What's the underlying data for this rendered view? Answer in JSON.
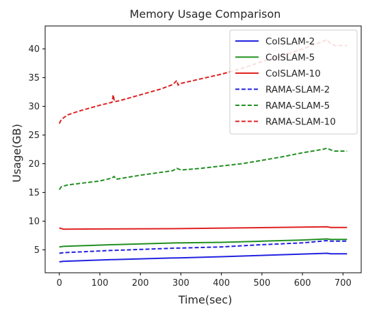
{
  "chart_data": {
    "type": "line",
    "title": "Memory Usage Comparison",
    "xlabel": "Time(sec)",
    "ylabel": "Usage(GB)",
    "xlim": [
      -35,
      745
    ],
    "ylim": [
      1,
      44
    ],
    "xticks": [
      0,
      100,
      200,
      300,
      400,
      500,
      600,
      700
    ],
    "yticks": [
      5,
      10,
      15,
      20,
      25,
      30,
      35,
      40
    ],
    "grid": false,
    "legend_position": "top-right",
    "series": [
      {
        "name": "ColSLAM-2",
        "color": "#1f1fe0",
        "style": "solid",
        "x": [
          0,
          10,
          130,
          135,
          290,
          295,
          400,
          660,
          670,
          710
        ],
        "y": [
          2.9,
          3.0,
          3.3,
          3.3,
          3.6,
          3.6,
          3.8,
          4.4,
          4.3,
          4.3
        ]
      },
      {
        "name": "ColSLAM-5",
        "color": "#1f8f1f",
        "style": "solid",
        "x": [
          0,
          10,
          130,
          135,
          290,
          300,
          400,
          500,
          600,
          660,
          670,
          710
        ],
        "y": [
          5.5,
          5.6,
          5.9,
          5.9,
          6.2,
          6.2,
          6.3,
          6.5,
          6.7,
          6.9,
          6.8,
          6.8
        ]
      },
      {
        "name": "ColSLAM-10",
        "color": "#e01f1f",
        "style": "solid",
        "x": [
          0,
          10,
          300,
          660,
          670,
          710
        ],
        "y": [
          8.8,
          8.6,
          8.7,
          9.0,
          8.9,
          8.9
        ]
      },
      {
        "name": "RAMA-SLAM-2",
        "color": "#1f1fe0",
        "style": "dashed",
        "x": [
          0,
          10,
          130,
          135,
          290,
          295,
          400,
          500,
          600,
          660,
          670,
          710
        ],
        "y": [
          4.4,
          4.5,
          4.9,
          4.9,
          5.3,
          5.3,
          5.5,
          5.9,
          6.2,
          6.6,
          6.5,
          6.5
        ]
      },
      {
        "name": "RAMA-SLAM-5",
        "color": "#1f8f1f",
        "style": "dashed",
        "x": [
          0,
          5,
          20,
          100,
          130,
          135,
          140,
          200,
          280,
          290,
          300,
          350,
          400,
          450,
          500,
          550,
          600,
          650,
          660,
          670,
          680,
          710
        ],
        "y": [
          15.5,
          16.0,
          16.3,
          17.0,
          17.5,
          17.8,
          17.3,
          18.0,
          18.8,
          19.2,
          18.9,
          19.2,
          19.6,
          20.0,
          20.6,
          21.2,
          21.9,
          22.5,
          22.7,
          22.4,
          22.2,
          22.2
        ]
      },
      {
        "name": "RAMA-SLAM-10",
        "color": "#e01f1f",
        "style": "dashed",
        "x": [
          0,
          5,
          20,
          50,
          100,
          130,
          133,
          136,
          150,
          200,
          250,
          280,
          290,
          293,
          300,
          350,
          400,
          450,
          500,
          550,
          600,
          650,
          660,
          670,
          680,
          710
        ],
        "y": [
          27.0,
          27.7,
          28.5,
          29.2,
          30.2,
          30.7,
          32.0,
          30.8,
          31.0,
          32.0,
          33.0,
          33.8,
          34.5,
          33.7,
          34.0,
          34.8,
          35.6,
          36.6,
          37.8,
          38.8,
          40.0,
          41.3,
          41.6,
          40.9,
          40.6,
          40.6
        ]
      }
    ]
  }
}
